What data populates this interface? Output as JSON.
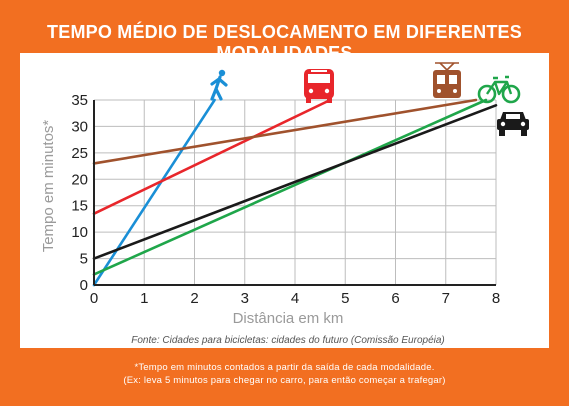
{
  "colors": {
    "background": "#f26f21",
    "panel": "#ffffff",
    "grid": "#bdbdbd",
    "axis": "#222222",
    "label_gray": "#9a9a9a"
  },
  "title": "TEMPO MÉDIO DE DESLOCAMENTO EM DIFERENTES MODALIDADES",
  "source": "Fonte: Cidades para bicicletas: cidades do futuro (Comissão Européia)",
  "footnote_line1": "*Tempo em minutos contados a partir da saída de cada modalidade.",
  "footnote_line2": "(Ex: leva 5 minutos para chegar no carro, para então começar a trafegar)",
  "chart_data": {
    "type": "line",
    "title": "TEMPO MÉDIO DE DESLOCAMENTO EM DIFERENTES MODALIDADES",
    "xlabel": "Distância em km",
    "ylabel": "Tempo em minutos*",
    "xlim": [
      0,
      8
    ],
    "ylim": [
      0,
      35
    ],
    "x_ticks": [
      "0",
      "1",
      "2",
      "3",
      "4",
      "5",
      "6",
      "7",
      "8"
    ],
    "y_ticks": [
      "0",
      "5",
      "10",
      "15",
      "20",
      "25",
      "30",
      "35"
    ],
    "grid": true,
    "legend": "icons at line ends",
    "series": [
      {
        "icon": "walking-person-icon",
        "color": "#1a8fd6",
        "points": [
          [
            0,
            0
          ],
          [
            2.4,
            35
          ]
        ]
      },
      {
        "icon": "bus-icon",
        "color": "#e8262b",
        "points": [
          [
            0,
            13.5
          ],
          [
            4.7,
            35
          ]
        ]
      },
      {
        "icon": "tram-icon",
        "color": "#a0522d",
        "points": [
          [
            0,
            23
          ],
          [
            7.6,
            35
          ]
        ]
      },
      {
        "icon": "bicycle-icon",
        "color": "#1fa64a",
        "points": [
          [
            0,
            2
          ],
          [
            7.8,
            35
          ]
        ]
      },
      {
        "icon": "car-icon",
        "color": "#1a1a1a",
        "points": [
          [
            0,
            5
          ],
          [
            8,
            34
          ]
        ]
      }
    ]
  }
}
